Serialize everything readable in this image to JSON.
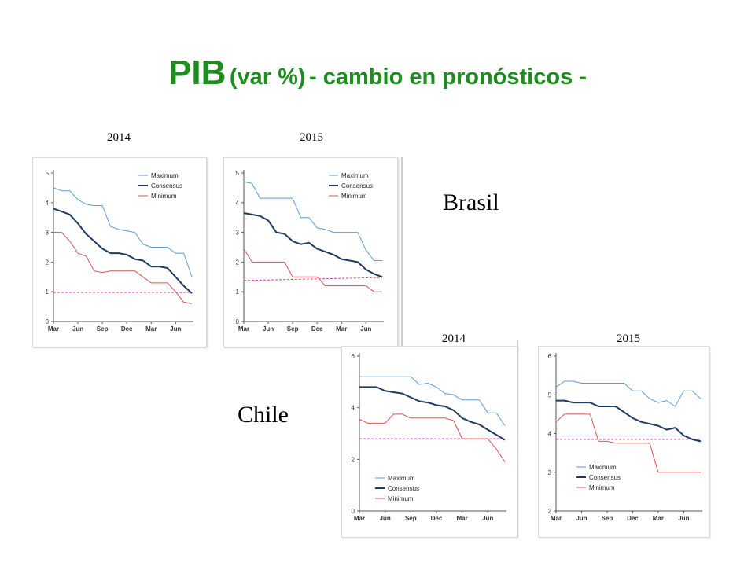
{
  "title": {
    "main": "PIB",
    "paren": "(var %)",
    "rest": "- cambio en pronósticos -"
  },
  "labels": {
    "brasil": "Brasil",
    "chile": "Chile"
  },
  "colors": {
    "maximum": "#5b9bd5",
    "consensus": "#1f3a5f",
    "minimum": "#d9534f",
    "reference": "#d63eb8",
    "title": "#1e8c1e"
  },
  "chart_data": [
    {
      "id": "brasil-2014",
      "type": "line",
      "year_label": "2014",
      "xlabels": [
        "Mar",
        "Jun",
        "Sep",
        "Dec",
        "Mar",
        "Jun"
      ],
      "x": [
        0,
        1,
        2,
        3,
        4,
        5,
        6,
        7,
        8,
        9,
        10,
        11,
        12,
        13,
        14,
        15,
        16,
        17
      ],
      "ylim": [
        0,
        5
      ],
      "yticks": [
        "0",
        "1",
        "2",
        "3",
        "4",
        "5"
      ],
      "legend": "top-right",
      "legend_entries": [
        "Maximum",
        "Consensus",
        "Minimum"
      ],
      "series": [
        {
          "name": "Maximum",
          "key": "maximum",
          "values": [
            4.5,
            4.4,
            4.4,
            4.1,
            3.95,
            3.9,
            3.9,
            3.2,
            3.1,
            3.05,
            3.0,
            2.6,
            2.5,
            2.5,
            2.5,
            2.3,
            2.3,
            1.5
          ]
        },
        {
          "name": "Consensus",
          "key": "consensus",
          "values": [
            3.8,
            3.7,
            3.6,
            3.3,
            2.95,
            2.7,
            2.45,
            2.3,
            2.3,
            2.25,
            2.1,
            2.05,
            1.85,
            1.85,
            1.8,
            1.5,
            1.2,
            0.95
          ]
        },
        {
          "name": "Minimum",
          "key": "minimum",
          "values": [
            3.0,
            3.0,
            2.7,
            2.3,
            2.2,
            1.7,
            1.65,
            1.7,
            1.7,
            1.7,
            1.7,
            1.5,
            1.3,
            1.3,
            1.3,
            1.0,
            0.65,
            0.6
          ]
        }
      ],
      "reference": [
        0.98,
        0.98
      ]
    },
    {
      "id": "brasil-2015",
      "type": "line",
      "year_label": "2015",
      "xlabels": [
        "Mar",
        "Jun",
        "Sep",
        "Dec",
        "Mar",
        "Jun"
      ],
      "x": [
        0,
        1,
        2,
        3,
        4,
        5,
        6,
        7,
        8,
        9,
        10,
        11,
        12,
        13,
        14,
        15,
        16,
        17
      ],
      "ylim": [
        0,
        5
      ],
      "yticks": [
        "0",
        "1",
        "2",
        "3",
        "4",
        "5"
      ],
      "legend": "top-right",
      "legend_entries": [
        "Maximum",
        "Consensus",
        "Minimum"
      ],
      "series": [
        {
          "name": "Maximum",
          "key": "maximum",
          "values": [
            4.7,
            4.65,
            4.15,
            4.15,
            4.15,
            4.15,
            4.15,
            3.5,
            3.5,
            3.15,
            3.1,
            3.0,
            3.0,
            3.0,
            3.0,
            2.4,
            2.05,
            2.05
          ]
        },
        {
          "name": "Consensus",
          "key": "consensus",
          "values": [
            3.65,
            3.6,
            3.55,
            3.4,
            3.0,
            2.95,
            2.7,
            2.6,
            2.65,
            2.45,
            2.35,
            2.25,
            2.1,
            2.05,
            2.0,
            1.75,
            1.6,
            1.5
          ]
        },
        {
          "name": "Minimum",
          "key": "minimum",
          "values": [
            2.45,
            2.0,
            2.0,
            2.0,
            2.0,
            2.0,
            1.5,
            1.5,
            1.5,
            1.5,
            1.2,
            1.2,
            1.2,
            1.2,
            1.2,
            1.2,
            1.0,
            1.0
          ]
        }
      ],
      "reference": [
        1.38,
        1.48
      ]
    },
    {
      "id": "chile-2014",
      "type": "line",
      "year_label": "2014",
      "xlabels": [
        "Mar",
        "Jun",
        "Sep",
        "Dec",
        "Mar",
        "Jun"
      ],
      "x": [
        0,
        1,
        2,
        3,
        4,
        5,
        6,
        7,
        8,
        9,
        10,
        11,
        12,
        13,
        14,
        15,
        16,
        17
      ],
      "ylim": [
        0,
        6
      ],
      "yticks": [
        "0",
        "2",
        "4",
        "6"
      ],
      "legend": "bottom-left",
      "legend_entries": [
        "Maximum",
        "Consensus",
        "Minimum"
      ],
      "series": [
        {
          "name": "Maximum",
          "key": "maximum",
          "values": [
            5.2,
            5.2,
            5.2,
            5.2,
            5.2,
            5.2,
            5.2,
            4.9,
            4.95,
            4.8,
            4.55,
            4.5,
            4.3,
            4.3,
            4.3,
            3.8,
            3.8,
            3.3
          ]
        },
        {
          "name": "Consensus",
          "key": "consensus",
          "values": [
            4.8,
            4.8,
            4.8,
            4.65,
            4.6,
            4.55,
            4.4,
            4.25,
            4.2,
            4.1,
            4.05,
            3.9,
            3.6,
            3.45,
            3.35,
            3.15,
            2.95,
            2.75
          ]
        },
        {
          "name": "Minimum",
          "key": "minimum",
          "values": [
            3.55,
            3.4,
            3.4,
            3.4,
            3.75,
            3.75,
            3.6,
            3.6,
            3.6,
            3.6,
            3.6,
            3.5,
            2.8,
            2.8,
            2.8,
            2.8,
            2.4,
            1.9
          ]
        }
      ],
      "reference": [
        2.8,
        2.8
      ]
    },
    {
      "id": "chile-2015",
      "type": "line",
      "year_label": "2015",
      "xlabels": [
        "Mar",
        "Jun",
        "Sep",
        "Dec",
        "Mar",
        "Jun"
      ],
      "x": [
        0,
        1,
        2,
        3,
        4,
        5,
        6,
        7,
        8,
        9,
        10,
        11,
        12,
        13,
        14,
        15,
        16,
        17
      ],
      "ylim": [
        2,
        6
      ],
      "yticks": [
        "2",
        "3",
        "4",
        "5",
        "6"
      ],
      "legend": "bottom-left",
      "legend_entries": [
        "Maximum",
        "Consensus",
        "Minimum"
      ],
      "series": [
        {
          "name": "Maximum",
          "key": "maximum",
          "values": [
            5.2,
            5.35,
            5.35,
            5.3,
            5.3,
            5.3,
            5.3,
            5.3,
            5.3,
            5.1,
            5.1,
            4.9,
            4.8,
            4.85,
            4.7,
            5.1,
            5.1,
            4.9
          ]
        },
        {
          "name": "Consensus",
          "key": "consensus",
          "values": [
            4.85,
            4.85,
            4.8,
            4.8,
            4.8,
            4.7,
            4.7,
            4.7,
            4.55,
            4.4,
            4.3,
            4.25,
            4.2,
            4.1,
            4.15,
            3.95,
            3.85,
            3.8
          ]
        },
        {
          "name": "Minimum",
          "key": "minimum",
          "values": [
            4.3,
            4.5,
            4.5,
            4.5,
            4.5,
            3.8,
            3.8,
            3.75,
            3.75,
            3.75,
            3.75,
            3.75,
            3.0,
            3.0,
            3.0,
            3.0,
            3.0,
            3.0
          ]
        }
      ],
      "reference": [
        3.85,
        3.85
      ]
    }
  ]
}
